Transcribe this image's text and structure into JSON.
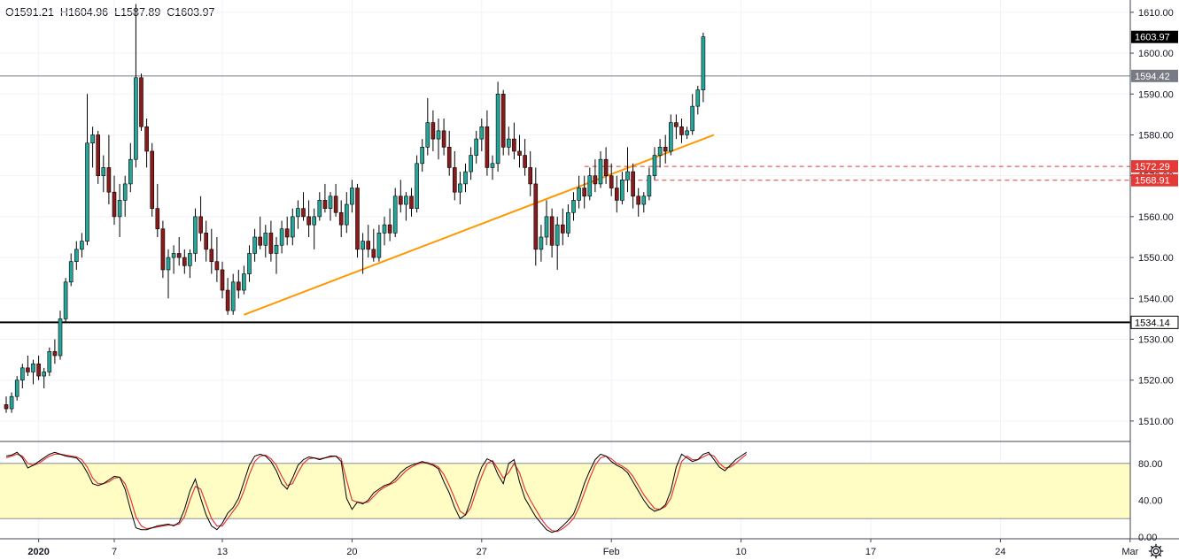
{
  "ohlc": {
    "open": "O1591.21",
    "high": "H1604.96",
    "low": "L1587.89",
    "close": "C1603.97"
  },
  "colors": {
    "up": "#26a69a",
    "down": "#8b1a1a",
    "wick": "#000000",
    "trendline": "#ff9800",
    "stoch_k": "#000000",
    "stoch_d": "#e53935",
    "band_fill": "#fffcc4",
    "resistance": "#e53935"
  },
  "icons": {
    "settings": "gear-icon"
  },
  "chart_data": {
    "type": "candlestick",
    "price_axis": {
      "min": 1505,
      "max": 1613,
      "ticks": [
        1510,
        1520,
        1530,
        1540,
        1550,
        1560,
        1570,
        1580,
        1590,
        1600,
        1610
      ]
    },
    "price_tick_labels": [
      "1510.00",
      "1520.00",
      "1530.00",
      "1540.00",
      "1550.00",
      "1560.00",
      "1570.00",
      "1580.00",
      "1590.00",
      "1600.00",
      "1610.00"
    ],
    "time_labels": [
      {
        "i": 6,
        "label": "2020"
      },
      {
        "i": 20,
        "label": "7"
      },
      {
        "i": 40,
        "label": "13"
      },
      {
        "i": 64,
        "label": "20"
      },
      {
        "i": 88,
        "label": "27"
      },
      {
        "i": 112,
        "label": "Feb"
      },
      {
        "i": 136,
        "label": "10"
      },
      {
        "i": 160,
        "label": "17"
      },
      {
        "i": 184,
        "label": "24"
      },
      {
        "i": 208,
        "label": "Mar"
      }
    ],
    "horizontal_lines": [
      {
        "value": 1594.42,
        "label": "1594.42",
        "style": "thin"
      },
      {
        "value": 1534.14,
        "label": "1534.14",
        "style": "thick"
      }
    ],
    "current_price": {
      "value": 1603.97,
      "label": "1603.97"
    },
    "resistance_zone": [
      {
        "value": 1572.29,
        "label": "1572.29",
        "from_i": 107
      },
      {
        "value": 1568.91,
        "label": "1568.91",
        "from_i": 114
      }
    ],
    "trendline": {
      "from": {
        "i": 44,
        "price": 1536
      },
      "to": {
        "i": 131,
        "price": 1580
      }
    },
    "candles": [
      [
        1514,
        1516,
        1512,
        1513
      ],
      [
        1513,
        1517,
        1512,
        1516
      ],
      [
        1516,
        1521,
        1515,
        1520
      ],
      [
        1520,
        1524,
        1518,
        1523
      ],
      [
        1523,
        1526,
        1521,
        1522
      ],
      [
        1522,
        1525,
        1519,
        1524
      ],
      [
        1524,
        1526,
        1520,
        1521
      ],
      [
        1521,
        1523,
        1518,
        1522
      ],
      [
        1522,
        1528,
        1521,
        1527
      ],
      [
        1527,
        1530,
        1524,
        1526
      ],
      [
        1526,
        1537,
        1525,
        1535
      ],
      [
        1535,
        1545,
        1534,
        1544
      ],
      [
        1544,
        1551,
        1543,
        1549
      ],
      [
        1549,
        1554,
        1547,
        1552
      ],
      [
        1552,
        1556,
        1550,
        1554
      ],
      [
        1554,
        1590,
        1553,
        1578
      ],
      [
        1578,
        1582,
        1572,
        1580
      ],
      [
        1580,
        1581,
        1568,
        1570
      ],
      [
        1570,
        1575,
        1566,
        1572
      ],
      [
        1572,
        1580,
        1563,
        1566
      ],
      [
        1566,
        1570,
        1558,
        1560
      ],
      [
        1560,
        1568,
        1555,
        1564
      ],
      [
        1564,
        1570,
        1560,
        1568
      ],
      [
        1568,
        1578,
        1566,
        1574
      ],
      [
        1574,
        1612,
        1572,
        1594
      ],
      [
        1594,
        1595,
        1581,
        1582
      ],
      [
        1582,
        1584,
        1572,
        1576
      ],
      [
        1576,
        1578,
        1560,
        1562
      ],
      [
        1562,
        1568,
        1555,
        1557
      ],
      [
        1557,
        1559,
        1545,
        1547
      ],
      [
        1547,
        1552,
        1540,
        1550
      ],
      [
        1550,
        1553,
        1546,
        1551
      ],
      [
        1551,
        1555,
        1548,
        1550
      ],
      [
        1550,
        1552,
        1546,
        1548
      ],
      [
        1548,
        1552,
        1545,
        1551
      ],
      [
        1551,
        1562,
        1549,
        1560
      ],
      [
        1560,
        1565,
        1554,
        1556
      ],
      [
        1556,
        1559,
        1549,
        1552
      ],
      [
        1552,
        1557,
        1546,
        1549
      ],
      [
        1549,
        1555,
        1544,
        1547
      ],
      [
        1547,
        1549,
        1540,
        1542
      ],
      [
        1542,
        1545,
        1536,
        1537
      ],
      [
        1537,
        1546,
        1536,
        1544
      ],
      [
        1544,
        1547,
        1540,
        1542
      ],
      [
        1542,
        1548,
        1541,
        1546
      ],
      [
        1546,
        1553,
        1544,
        1551
      ],
      [
        1551,
        1557,
        1549,
        1555
      ],
      [
        1555,
        1560,
        1552,
        1553
      ],
      [
        1553,
        1558,
        1550,
        1556
      ],
      [
        1556,
        1559,
        1549,
        1551
      ],
      [
        1551,
        1555,
        1546,
        1553
      ],
      [
        1553,
        1559,
        1551,
        1557
      ],
      [
        1557,
        1560,
        1553,
        1555
      ],
      [
        1555,
        1562,
        1553,
        1560
      ],
      [
        1560,
        1564,
        1557,
        1562
      ],
      [
        1562,
        1566,
        1559,
        1560
      ],
      [
        1560,
        1564,
        1555,
        1558
      ],
      [
        1558,
        1562,
        1552,
        1560
      ],
      [
        1560,
        1566,
        1559,
        1564
      ],
      [
        1564,
        1568,
        1561,
        1562
      ],
      [
        1562,
        1566,
        1559,
        1565
      ],
      [
        1565,
        1568,
        1560,
        1561
      ],
      [
        1561,
        1564,
        1555,
        1558
      ],
      [
        1558,
        1566,
        1556,
        1563
      ],
      [
        1563,
        1569,
        1561,
        1567
      ],
      [
        1567,
        1568,
        1550,
        1552
      ],
      [
        1552,
        1556,
        1546,
        1554
      ],
      [
        1554,
        1558,
        1550,
        1552
      ],
      [
        1552,
        1557,
        1549,
        1550
      ],
      [
        1550,
        1558,
        1549,
        1556
      ],
      [
        1556,
        1560,
        1553,
        1558
      ],
      [
        1558,
        1562,
        1554,
        1556
      ],
      [
        1556,
        1567,
        1555,
        1565
      ],
      [
        1565,
        1569,
        1561,
        1563
      ],
      [
        1563,
        1566,
        1559,
        1565
      ],
      [
        1565,
        1567,
        1560,
        1562
      ],
      [
        1562,
        1575,
        1561,
        1573
      ],
      [
        1573,
        1579,
        1571,
        1577
      ],
      [
        1577,
        1589,
        1575,
        1583
      ],
      [
        1583,
        1586,
        1576,
        1579
      ],
      [
        1579,
        1584,
        1574,
        1581
      ],
      [
        1581,
        1584,
        1575,
        1577
      ],
      [
        1577,
        1581,
        1570,
        1572
      ],
      [
        1572,
        1576,
        1564,
        1566
      ],
      [
        1566,
        1571,
        1563,
        1568
      ],
      [
        1568,
        1573,
        1566,
        1571
      ],
      [
        1571,
        1577,
        1569,
        1575
      ],
      [
        1575,
        1581,
        1573,
        1579
      ],
      [
        1579,
        1584,
        1576,
        1582
      ],
      [
        1582,
        1586,
        1570,
        1572
      ],
      [
        1572,
        1575,
        1569,
        1573
      ],
      [
        1573,
        1593,
        1571,
        1590
      ],
      [
        1590,
        1591,
        1575,
        1577
      ],
      [
        1577,
        1582,
        1575,
        1579
      ],
      [
        1579,
        1583,
        1574,
        1576
      ],
      [
        1576,
        1580,
        1572,
        1575
      ],
      [
        1575,
        1579,
        1570,
        1572
      ],
      [
        1572,
        1576,
        1565,
        1568
      ],
      [
        1568,
        1572,
        1548,
        1552
      ],
      [
        1552,
        1558,
        1549,
        1555
      ],
      [
        1555,
        1564,
        1553,
        1560
      ],
      [
        1560,
        1562,
        1550,
        1553
      ],
      [
        1553,
        1560,
        1547,
        1558
      ],
      [
        1558,
        1562,
        1553,
        1556
      ],
      [
        1556,
        1563,
        1555,
        1561
      ],
      [
        1561,
        1566,
        1559,
        1564
      ],
      [
        1564,
        1570,
        1562,
        1567
      ],
      [
        1567,
        1570,
        1562,
        1565
      ],
      [
        1565,
        1572,
        1564,
        1570
      ],
      [
        1570,
        1574,
        1566,
        1568
      ],
      [
        1568,
        1576,
        1567,
        1574
      ],
      [
        1574,
        1577,
        1568,
        1570
      ],
      [
        1570,
        1573,
        1565,
        1567
      ],
      [
        1567,
        1570,
        1561,
        1564
      ],
      [
        1564,
        1571,
        1563,
        1569
      ],
      [
        1569,
        1577,
        1566,
        1571
      ],
      [
        1571,
        1573,
        1562,
        1565
      ],
      [
        1565,
        1567,
        1560,
        1563
      ],
      [
        1563,
        1566,
        1561,
        1565
      ],
      [
        1565,
        1572,
        1564,
        1570
      ],
      [
        1570,
        1577,
        1569,
        1575
      ],
      [
        1575,
        1579,
        1572,
        1577
      ],
      [
        1577,
        1580,
        1573,
        1576
      ],
      [
        1576,
        1585,
        1575,
        1583
      ],
      [
        1583,
        1585,
        1579,
        1582
      ],
      [
        1582,
        1584,
        1578,
        1580
      ],
      [
        1580,
        1582,
        1579,
        1581
      ],
      [
        1581,
        1590,
        1580,
        1587
      ],
      [
        1587,
        1592,
        1585,
        1591
      ],
      [
        1591,
        1605,
        1588,
        1604
      ]
    ],
    "stochastic": {
      "levels": [
        0,
        20,
        40,
        80,
        100
      ],
      "level_labels": [
        "0.00",
        "40.00",
        "80.00"
      ],
      "band": [
        20,
        80
      ],
      "k": [
        88,
        89,
        92,
        86,
        75,
        78,
        82,
        86,
        90,
        92,
        90,
        88,
        87,
        86,
        80,
        70,
        58,
        56,
        58,
        62,
        66,
        65,
        52,
        30,
        10,
        8,
        8,
        10,
        12,
        13,
        14,
        12,
        16,
        30,
        50,
        63,
        42,
        24,
        12,
        8,
        15,
        26,
        32,
        42,
        60,
        78,
        88,
        90,
        88,
        82,
        72,
        58,
        52,
        64,
        78,
        84,
        87,
        86,
        84,
        86,
        88,
        88,
        82,
        42,
        30,
        38,
        36,
        40,
        48,
        52,
        56,
        58,
        63,
        70,
        75,
        78,
        80,
        82,
        80,
        78,
        74,
        60,
        48,
        32,
        20,
        24,
        40,
        60,
        76,
        85,
        82,
        68,
        58,
        80,
        84,
        60,
        42,
        32,
        22,
        15,
        8,
        5,
        7,
        12,
        18,
        25,
        40,
        58,
        72,
        84,
        90,
        88,
        82,
        78,
        75,
        70,
        60,
        50,
        40,
        32,
        28,
        30,
        35,
        50,
        76,
        90,
        86,
        82,
        84,
        90,
        92,
        84,
        76,
        72,
        78,
        84,
        88,
        92
      ],
      "d": [
        86,
        88,
        90,
        88,
        80,
        78,
        80,
        84,
        88,
        90,
        90,
        89,
        88,
        87,
        84,
        76,
        64,
        58,
        58,
        60,
        64,
        65,
        58,
        42,
        22,
        12,
        9,
        10,
        11,
        12,
        13,
        13,
        14,
        22,
        40,
        55,
        52,
        36,
        20,
        12,
        12,
        20,
        28,
        36,
        50,
        68,
        82,
        88,
        89,
        85,
        78,
        66,
        56,
        58,
        70,
        80,
        85,
        86,
        85,
        86,
        87,
        88,
        85,
        62,
        40,
        38,
        37,
        38,
        44,
        50,
        54,
        57,
        60,
        66,
        72,
        76,
        79,
        81,
        81,
        79,
        76,
        68,
        56,
        42,
        28,
        24,
        32,
        50,
        66,
        80,
        83,
        74,
        64,
        70,
        80,
        70,
        52,
        40,
        30,
        20,
        12,
        7,
        6,
        9,
        14,
        20,
        32,
        48,
        64,
        78,
        86,
        88,
        85,
        80,
        77,
        73,
        66,
        56,
        46,
        38,
        31,
        30,
        33,
        42,
        62,
        82,
        88,
        84,
        84,
        87,
        90,
        88,
        80,
        75,
        76,
        80,
        85,
        90
      ]
    }
  }
}
